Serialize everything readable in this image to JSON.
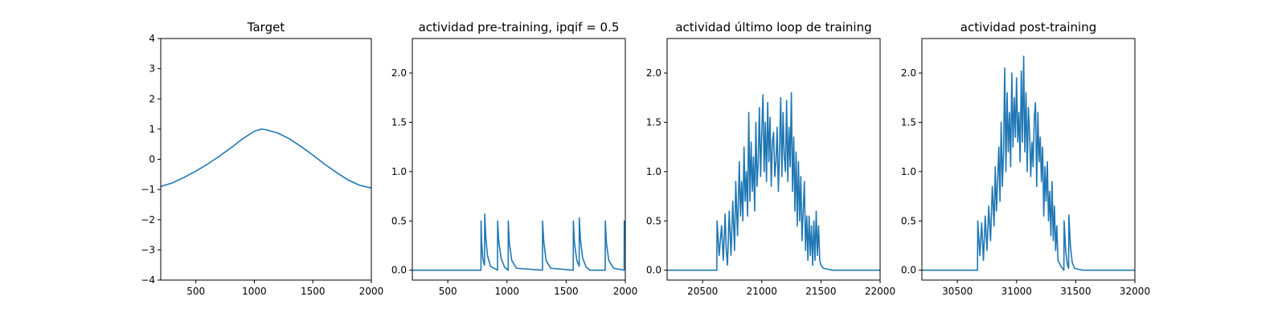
{
  "chart_data": [
    {
      "type": "line",
      "title": "Target",
      "xlabel": "",
      "ylabel": "",
      "xlim": [
        200,
        2000
      ],
      "ylim": [
        -4,
        4
      ],
      "xticks": [
        500,
        1000,
        1500,
        2000
      ],
      "yticks": [
        -4,
        -3,
        -2,
        -1,
        0,
        1,
        2,
        3,
        4
      ],
      "xtick_labels": [
        "500",
        "1000",
        "1500",
        "2000"
      ],
      "ytick_labels": [
        "−4",
        "−3",
        "−2",
        "−1",
        "0",
        "1",
        "2",
        "3",
        "4"
      ],
      "grid": false,
      "series": [
        {
          "color": "#1f77b4",
          "x": [
            200,
            300,
            400,
            500,
            600,
            700,
            800,
            900,
            1000,
            1060,
            1100,
            1200,
            1300,
            1400,
            1500,
            1600,
            1700,
            1800,
            1900,
            2000
          ],
          "y": [
            -0.9,
            -0.78,
            -0.6,
            -0.39,
            -0.16,
            0.1,
            0.38,
            0.68,
            0.93,
            1.0,
            0.98,
            0.87,
            0.68,
            0.42,
            0.14,
            -0.16,
            -0.43,
            -0.68,
            -0.86,
            -0.95
          ]
        }
      ]
    },
    {
      "type": "line",
      "title": "actividad pre-training, ipqif = 0.5",
      "xlabel": "",
      "ylabel": "",
      "xlim": [
        200,
        2000
      ],
      "ylim": [
        -0.1,
        2.35
      ],
      "xticks": [
        500,
        1000,
        1500,
        2000
      ],
      "yticks": [
        0.0,
        0.5,
        1.0,
        1.5,
        2.0
      ],
      "xtick_labels": [
        "500",
        "1000",
        "1500",
        "2000"
      ],
      "ytick_labels": [
        "0.0",
        "0.5",
        "1.0",
        "1.5",
        "2.0"
      ],
      "grid": false,
      "series": [
        {
          "color": "#1f77b4",
          "x": [
            200,
            780,
            781,
            785,
            795,
            810,
            812,
            820,
            835,
            860,
            920,
            921,
            930,
            950,
            980,
            1010,
            1011,
            1020,
            1040,
            1080,
            1300,
            1301,
            1310,
            1330,
            1370,
            1560,
            1561,
            1570,
            1590,
            1610,
            1611,
            1620,
            1640,
            1670,
            1700,
            1830,
            1831,
            1840,
            1860,
            1900,
            1990,
            1991,
            2000
          ],
          "y": [
            0,
            0,
            0.5,
            0.3,
            0.12,
            0.05,
            0.57,
            0.35,
            0.15,
            0.04,
            0,
            0.5,
            0.3,
            0.12,
            0.03,
            0,
            0.5,
            0.28,
            0.1,
            0.02,
            0,
            0.5,
            0.3,
            0.1,
            0.02,
            0,
            0.5,
            0.28,
            0.1,
            0.04,
            0.53,
            0.32,
            0.12,
            0.03,
            0,
            0,
            0.5,
            0.28,
            0.1,
            0.02,
            0,
            0.5,
            0.3
          ]
        }
      ]
    },
    {
      "type": "line",
      "title": "actividad último loop de training",
      "xlabel": "",
      "ylabel": "",
      "xlim": [
        20200,
        22000
      ],
      "ylim": [
        -0.1,
        2.35
      ],
      "xticks": [
        20500,
        21000,
        21500,
        22000
      ],
      "yticks": [
        0.0,
        0.5,
        1.0,
        1.5,
        2.0
      ],
      "xtick_labels": [
        "20500",
        "21000",
        "21500",
        "22000"
      ],
      "ytick_labels": [
        "0.0",
        "0.5",
        "1.0",
        "1.5",
        "2.0"
      ],
      "grid": false,
      "series": [
        {
          "color": "#1f77b4",
          "x": [
            20200,
            20620,
            20622,
            20640,
            20660,
            20675,
            20690,
            20700,
            20710,
            20725,
            20740,
            20755,
            20770,
            20780,
            20795,
            20810,
            20820,
            20830,
            20840,
            20850,
            20860,
            20870,
            20880,
            20890,
            20900,
            20910,
            20920,
            20930,
            20940,
            20950,
            20960,
            20970,
            20980,
            20990,
            21000,
            21010,
            21020,
            21030,
            21040,
            21050,
            21060,
            21070,
            21080,
            21090,
            21100,
            21110,
            21120,
            21130,
            21140,
            21150,
            21160,
            21170,
            21180,
            21190,
            21200,
            21210,
            21220,
            21230,
            21240,
            21250,
            21260,
            21270,
            21280,
            21290,
            21300,
            21310,
            21320,
            21330,
            21340,
            21350,
            21360,
            21370,
            21380,
            21390,
            21400,
            21410,
            21420,
            21430,
            21440,
            21450,
            21460,
            21470,
            21480,
            21490,
            21500,
            21520,
            21560,
            21600,
            22000
          ],
          "y": [
            0,
            0,
            0.5,
            0.15,
            0.45,
            0.1,
            0.57,
            0.2,
            0.05,
            0.6,
            0.15,
            0.7,
            0.2,
            0.9,
            0.35,
            1.1,
            0.55,
            0.9,
            0.5,
            1.25,
            0.7,
            1.0,
            0.55,
            1.6,
            0.7,
            1.3,
            0.8,
            1.15,
            0.6,
            1.5,
            0.85,
            1.1,
            1.65,
            0.95,
            1.4,
            1.78,
            1.0,
            1.5,
            0.9,
            1.7,
            1.1,
            1.55,
            0.85,
            1.3,
            1.4,
            0.95,
            1.1,
            1.45,
            0.8,
            1.2,
            1.75,
            0.95,
            1.6,
            1.15,
            1.0,
            1.72,
            0.9,
            1.45,
            1.05,
            1.8,
            0.8,
            1.35,
            0.6,
            1.2,
            0.45,
            1.1,
            0.5,
            0.95,
            0.3,
            0.6,
            0.9,
            0.2,
            0.55,
            0.1,
            0.55,
            0.15,
            0.45,
            0.05,
            0.5,
            0.1,
            0.6,
            0.15,
            0.45,
            0.1,
            0.05,
            0.02,
            0.01,
            0,
            0
          ]
        }
      ]
    },
    {
      "type": "line",
      "title": "actividad post-training",
      "xlabel": "",
      "ylabel": "",
      "xlim": [
        30200,
        32000
      ],
      "ylim": [
        -0.1,
        2.35
      ],
      "xticks": [
        30500,
        31000,
        31500,
        32000
      ],
      "yticks": [
        0.0,
        0.5,
        1.0,
        1.5,
        2.0
      ],
      "xtick_labels": [
        "30500",
        "31000",
        "31500",
        "32000"
      ],
      "ytick_labels": [
        "0.0",
        "0.5",
        "1.0",
        "1.5",
        "2.0"
      ],
      "grid": false,
      "series": [
        {
          "color": "#1f77b4",
          "x": [
            30200,
            30670,
            30672,
            30690,
            30705,
            30720,
            30735,
            30750,
            30765,
            30780,
            30795,
            30810,
            30820,
            30830,
            30840,
            30850,
            30860,
            30870,
            30880,
            30890,
            30900,
            30910,
            30920,
            30930,
            30940,
            30950,
            30960,
            30970,
            30980,
            30990,
            31000,
            31010,
            31020,
            31030,
            31040,
            31050,
            31060,
            31070,
            31080,
            31090,
            31100,
            31110,
            31120,
            31130,
            31140,
            31150,
            31160,
            31170,
            31180,
            31190,
            31200,
            31210,
            31220,
            31230,
            31240,
            31250,
            31260,
            31270,
            31280,
            31290,
            31300,
            31310,
            31320,
            31330,
            31340,
            31350,
            31380,
            31400,
            31402,
            31415,
            31430,
            31440,
            31442,
            31455,
            31470,
            31490,
            31520,
            31560,
            32000
          ],
          "y": [
            0,
            0,
            0.5,
            0.15,
            0.48,
            0.1,
            0.55,
            0.2,
            0.65,
            0.3,
            0.85,
            0.45,
            1.05,
            0.6,
            0.9,
            1.25,
            0.7,
            1.5,
            0.85,
            1.2,
            2.05,
            1.0,
            1.8,
            1.2,
            1.6,
            1.05,
            2.0,
            1.25,
            1.75,
            1.35,
            1.95,
            1.3,
            1.6,
            1.1,
            2.02,
            1.3,
            2.17,
            1.2,
            1.8,
            1.0,
            1.65,
            1.4,
            0.95,
            1.3,
            1.05,
            1.55,
            1.7,
            0.85,
            1.6,
            1.1,
            1.35,
            0.9,
            1.25,
            0.55,
            1.05,
            0.7,
            1.1,
            0.5,
            0.8,
            0.35,
            0.9,
            0.3,
            0.65,
            0.2,
            0.45,
            0.1,
            0.03,
            0,
            0.5,
            0.2,
            0.05,
            0.02,
            0.56,
            0.25,
            0.08,
            0.02,
            0.01,
            0,
            0
          ]
        }
      ]
    }
  ]
}
